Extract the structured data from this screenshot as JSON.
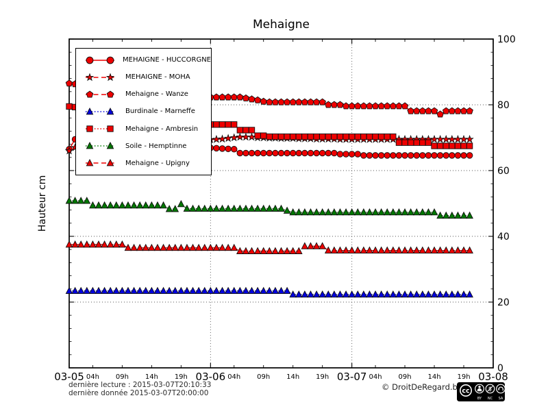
{
  "title": "Mehaigne",
  "ylabel": "Hauteur cm",
  "footer": {
    "last_reading": "dernière lecture : 2015-03-07T20:10:33",
    "last_data": "dernière donnée  2015-03-07T20:00:00",
    "copyright": "© DroitDeRegard.be",
    "cc_logo": "cc",
    "cc_badge": [
      "BY",
      "NC",
      "SA"
    ]
  },
  "chart_data": {
    "type": "line",
    "title": "Mehaigne",
    "ylabel": "Hauteur cm",
    "ylim": [
      0,
      100
    ],
    "y_ticks": [
      0,
      20,
      40,
      60,
      80,
      100
    ],
    "y_minor_step": 4,
    "grid": "dotted horizontal at 20/40/60/80 and vertical at day boundaries",
    "grid_color": "#555555",
    "legend_position": "upper left",
    "x_axis": {
      "day_labels": [
        "03-05",
        "03-06",
        "03-07",
        "03-08"
      ],
      "hour_labels": [
        "04h",
        "09h",
        "14h",
        "19h"
      ],
      "hour_label_positions": [
        4,
        9,
        14,
        19
      ],
      "hours_total": 72,
      "x_step_hours": 1
    },
    "series": [
      {
        "name": "MEHAIGNE - HUCCORGNE",
        "slug": "huccorgne",
        "color": "#ee0000",
        "line": "solid",
        "marker": "circle",
        "values": [
          66.5,
          69.5,
          69.8,
          70,
          70,
          69.9,
          69.8,
          69.7,
          69.5,
          69.3,
          69.1,
          68.9,
          68.7,
          68.5,
          68.3,
          68.1,
          67.9,
          67.7,
          67.5,
          67.4,
          67.3,
          67.2,
          67.1,
          67,
          66.9,
          66.8,
          66.7,
          66.6,
          66.5,
          65.3,
          65.3,
          65.3,
          65.3,
          65.3,
          65.3,
          65.3,
          65.3,
          65.3,
          65.3,
          65.3,
          65.3,
          65.3,
          65.3,
          65.3,
          65.3,
          65.3,
          65,
          65,
          65,
          65,
          64.6,
          64.6,
          64.6,
          64.6,
          64.6,
          64.6,
          64.6,
          64.6,
          64.6,
          64.6,
          64.6,
          64.6,
          64.6,
          64.6,
          64.6,
          64.6,
          64.6,
          64.6,
          64.6
        ]
      },
      {
        "name": "MEHAIGNE - MOHA",
        "slug": "moha",
        "color": "#ee0000",
        "line": "dashed",
        "marker": "star",
        "values": [
          66,
          67,
          67.3,
          67.5,
          67.7,
          67.9,
          68.1,
          68.2,
          68.3,
          68.4,
          68.5,
          68.6,
          68.7,
          68.8,
          68.9,
          69,
          69,
          69.1,
          69.1,
          69.2,
          69.2,
          69.3,
          69.3,
          69.4,
          69.4,
          69.5,
          69.6,
          69.8,
          70,
          70.2,
          70.2,
          70.2,
          70,
          70,
          69.9,
          69.9,
          69.8,
          69.8,
          69.8,
          69.7,
          69.7,
          69.7,
          69.6,
          69.6,
          69.6,
          69.6,
          69.5,
          69.5,
          69.5,
          69.5,
          69.5,
          69.5,
          69.5,
          69.5,
          69.5,
          69.5,
          69.5,
          69.5,
          69.5,
          69.5,
          69.5,
          69.5,
          69.5,
          69.5,
          69.5,
          69.5,
          69.5,
          69.5,
          69.5
        ]
      },
      {
        "name": "Mehaigne - Wanze",
        "slug": "wanze",
        "color": "#ee0000",
        "line": "dashed",
        "marker": "pentagon",
        "values": [
          86.5,
          86.3,
          86,
          85.8,
          85.6,
          85.4,
          85.2,
          85,
          84.8,
          84.6,
          84.4,
          84.2,
          84,
          83.8,
          83.6,
          83.4,
          83.2,
          83,
          82.9,
          82.8,
          82.7,
          82.6,
          82.5,
          82.4,
          82.3,
          82.3,
          82.3,
          82.3,
          82.3,
          82.3,
          82,
          81.7,
          81.4,
          81,
          80.8,
          80.8,
          80.8,
          80.8,
          80.8,
          80.8,
          80.8,
          80.8,
          80.8,
          80.8,
          80,
          80,
          80,
          79.6,
          79.6,
          79.6,
          79.6,
          79.6,
          79.6,
          79.6,
          79.6,
          79.6,
          79.6,
          79.6,
          78.1,
          78.1,
          78.1,
          78.1,
          78.1,
          77.1,
          78.1,
          78.1,
          78.1,
          78.1,
          78.1
        ]
      },
      {
        "name": "Burdinale - Marneffe",
        "slug": "marneffe",
        "color": "#0000dd",
        "line": "dotted",
        "marker": "triangle",
        "values": [
          23.4,
          23.4,
          23.4,
          23.4,
          23.4,
          23.4,
          23.4,
          23.4,
          23.4,
          23.4,
          23.4,
          23.4,
          23.4,
          23.4,
          23.4,
          23.4,
          23.4,
          23.4,
          23.4,
          23.4,
          23.4,
          23.4,
          23.4,
          23.4,
          23.4,
          23.4,
          23.4,
          23.4,
          23.4,
          23.4,
          23.4,
          23.4,
          23.4,
          23.4,
          23.4,
          23.4,
          23.4,
          23.4,
          22.3,
          22.3,
          22.3,
          22.3,
          22.3,
          22.3,
          22.3,
          22.3,
          22.3,
          22.3,
          22.3,
          22.3,
          22.3,
          22.3,
          22.3,
          22.3,
          22.3,
          22.3,
          22.3,
          22.3,
          22.3,
          22.3,
          22.3,
          22.3,
          22.3,
          22.3,
          22.3,
          22.3,
          22.3,
          22.3,
          22.3
        ]
      },
      {
        "name": "Mehaigne - Ambresin",
        "slug": "ambresin",
        "color": "#ee0000",
        "line": "dotted",
        "marker": "square",
        "values": [
          79.5,
          79.3,
          79,
          78.7,
          78.4,
          78.1,
          77.8,
          77.5,
          77.2,
          76.9,
          76.6,
          76.3,
          76,
          75.7,
          75.4,
          75.1,
          74.9,
          74.7,
          74.5,
          74.3,
          74.2,
          74.1,
          74,
          74,
          74,
          74,
          74,
          74,
          74,
          72.3,
          72.3,
          72.3,
          70.6,
          70.6,
          70.3,
          70.3,
          70.3,
          70.3,
          70.3,
          70.3,
          70.3,
          70.3,
          70.3,
          70.3,
          70.3,
          70.3,
          70.3,
          70.3,
          70.3,
          70.3,
          70.3,
          70.3,
          70.3,
          70.3,
          70.3,
          70.3,
          68.5,
          68.5,
          68.5,
          68.5,
          68.5,
          68.5,
          67.5,
          67.5,
          67.5,
          67.5,
          67.5,
          67.5,
          67.5
        ]
      },
      {
        "name": "Soile - Hemptinne",
        "slug": "hemptinne",
        "color": "#007700",
        "line": "dotted",
        "marker": "triangle",
        "values": [
          50.8,
          50.8,
          50.8,
          50.8,
          49.4,
          49.4,
          49.4,
          49.4,
          49.4,
          49.4,
          49.4,
          49.4,
          49.4,
          49.4,
          49.4,
          49.4,
          49.4,
          48.3,
          48.3,
          49.8,
          48.4,
          48.4,
          48.4,
          48.4,
          48.4,
          48.4,
          48.4,
          48.4,
          48.4,
          48.4,
          48.4,
          48.4,
          48.4,
          48.4,
          48.4,
          48.4,
          48.4,
          47.8,
          47.3,
          47.3,
          47.3,
          47.3,
          47.3,
          47.3,
          47.3,
          47.3,
          47.3,
          47.3,
          47.3,
          47.3,
          47.3,
          47.3,
          47.3,
          47.3,
          47.3,
          47.3,
          47.3,
          47.3,
          47.3,
          47.3,
          47.3,
          47.3,
          47.3,
          46.3,
          46.3,
          46.3,
          46.3,
          46.3,
          46.3
        ]
      },
      {
        "name": "Mehaigne - Upigny",
        "slug": "upigny",
        "color": "#ee0000",
        "line": "dashed",
        "marker": "triangle",
        "values": [
          37.5,
          37.5,
          37.5,
          37.5,
          37.5,
          37.5,
          37.5,
          37.5,
          37.5,
          37.5,
          36.5,
          36.5,
          36.5,
          36.5,
          36.5,
          36.5,
          36.5,
          36.5,
          36.5,
          36.5,
          36.5,
          36.5,
          36.5,
          36.5,
          36.5,
          36.5,
          36.5,
          36.5,
          36.5,
          35.5,
          35.5,
          35.5,
          35.5,
          35.5,
          35.5,
          35.5,
          35.5,
          35.5,
          35.5,
          35.5,
          37,
          37,
          37,
          37,
          35.7,
          35.7,
          35.7,
          35.7,
          35.7,
          35.7,
          35.7,
          35.7,
          35.7,
          35.7,
          35.7,
          35.7,
          35.7,
          35.7,
          35.7,
          35.7,
          35.7,
          35.7,
          35.7,
          35.7,
          35.7,
          35.7,
          35.7,
          35.7,
          35.7
        ]
      }
    ]
  }
}
